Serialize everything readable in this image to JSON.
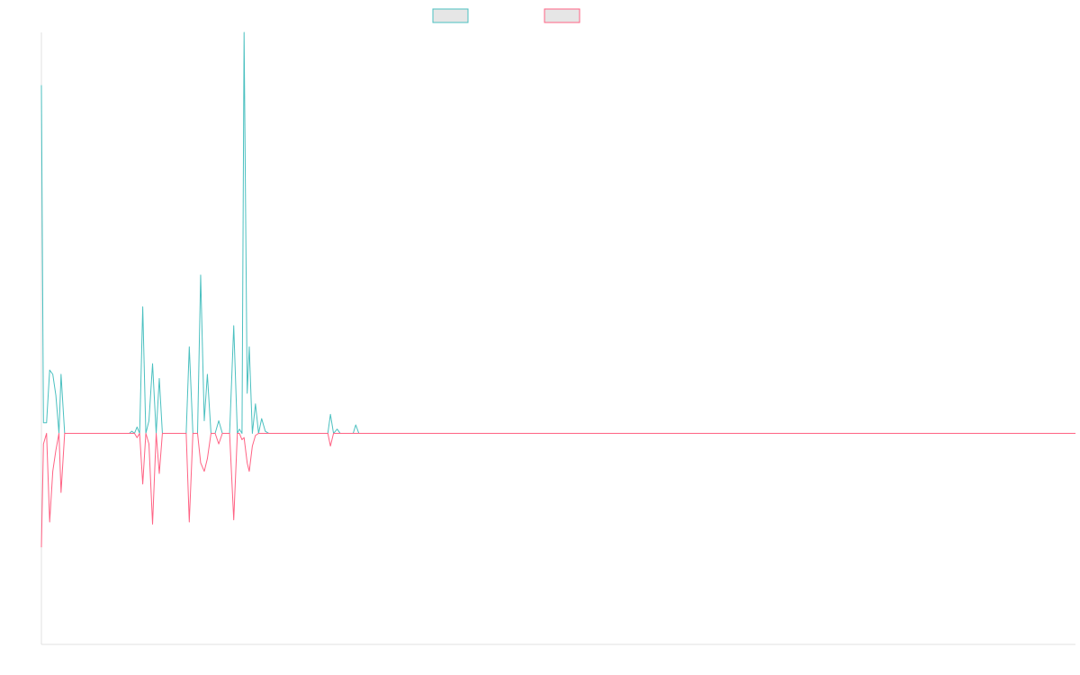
{
  "chart_data": {
    "type": "line",
    "title": "",
    "xlabel": "",
    "ylabel": "",
    "grid": false,
    "legend_position": "top-center",
    "ylim": [
      -1.0,
      1.9
    ],
    "xlim": [
      0,
      200
    ],
    "series": [
      {
        "label": "",
        "color": "#4bc0c0",
        "points": [
          [
            0,
            1.65
          ],
          [
            0.4,
            0.05
          ],
          [
            1,
            0.05
          ],
          [
            1.6,
            0.3
          ],
          [
            2.2,
            0.28
          ],
          [
            2.8,
            0.18
          ],
          [
            3.4,
            0.0
          ],
          [
            3.8,
            0.28
          ],
          [
            4.5,
            0.0
          ],
          [
            17,
            0.0
          ],
          [
            17.5,
            0.01
          ],
          [
            18,
            0.0
          ],
          [
            18.5,
            0.03
          ],
          [
            19,
            0.0
          ],
          [
            19.6,
            0.6
          ],
          [
            20.2,
            0.0
          ],
          [
            20.8,
            0.06
          ],
          [
            21.5,
            0.33
          ],
          [
            22.2,
            0.0
          ],
          [
            22.8,
            0.26
          ],
          [
            23.4,
            0.0
          ],
          [
            28,
            0.0
          ],
          [
            28.6,
            0.41
          ],
          [
            29.3,
            0.0
          ],
          [
            30.2,
            0.0
          ],
          [
            30.8,
            0.75
          ],
          [
            31.5,
            0.06
          ],
          [
            32.1,
            0.28
          ],
          [
            32.8,
            0.0
          ],
          [
            33.6,
            0.0
          ],
          [
            34.3,
            0.06
          ],
          [
            35,
            0.0
          ],
          [
            36.4,
            0.0
          ],
          [
            37.2,
            0.51
          ],
          [
            37.9,
            0.0
          ],
          [
            38.3,
            0.02
          ],
          [
            38.8,
            0.0
          ],
          [
            39.2,
            1.9
          ],
          [
            39.8,
            0.19
          ],
          [
            40.2,
            0.41
          ],
          [
            40.8,
            0.0
          ],
          [
            41.4,
            0.14
          ],
          [
            42,
            0.0
          ],
          [
            42.6,
            0.07
          ],
          [
            43.3,
            0.01
          ],
          [
            44,
            0.0
          ],
          [
            55.4,
            0.0
          ],
          [
            55.9,
            0.09
          ],
          [
            56.5,
            0.0
          ],
          [
            57.2,
            0.02
          ],
          [
            57.8,
            0.0
          ],
          [
            60.3,
            0.0
          ],
          [
            60.8,
            0.04
          ],
          [
            61.4,
            0.0
          ],
          [
            200,
            0.0
          ]
        ]
      },
      {
        "label": "",
        "color": "#ff6384",
        "points": [
          [
            0,
            -0.54
          ],
          [
            0.4,
            -0.05
          ],
          [
            1,
            0.0
          ],
          [
            1.6,
            -0.42
          ],
          [
            2.2,
            -0.18
          ],
          [
            2.8,
            -0.08
          ],
          [
            3.4,
            0.0
          ],
          [
            3.8,
            -0.28
          ],
          [
            4.5,
            0.0
          ],
          [
            17,
            0.0
          ],
          [
            17.5,
            0.0
          ],
          [
            18,
            0.0
          ],
          [
            18.5,
            -0.02
          ],
          [
            19,
            0.0
          ],
          [
            19.6,
            -0.24
          ],
          [
            20.2,
            0.0
          ],
          [
            20.8,
            -0.05
          ],
          [
            21.5,
            -0.43
          ],
          [
            22.2,
            0.0
          ],
          [
            22.8,
            -0.19
          ],
          [
            23.4,
            0.0
          ],
          [
            28,
            0.0
          ],
          [
            28.6,
            -0.42
          ],
          [
            29.3,
            0.0
          ],
          [
            30.2,
            0.0
          ],
          [
            30.8,
            -0.14
          ],
          [
            31.5,
            -0.18
          ],
          [
            32.1,
            -0.12
          ],
          [
            32.8,
            0.0
          ],
          [
            33.6,
            0.0
          ],
          [
            34.3,
            -0.05
          ],
          [
            35,
            0.0
          ],
          [
            36.4,
            0.0
          ],
          [
            37.2,
            -0.41
          ],
          [
            37.9,
            0.0
          ],
          [
            38.3,
            0.0
          ],
          [
            38.8,
            -0.03
          ],
          [
            39.2,
            -0.02
          ],
          [
            39.8,
            -0.14
          ],
          [
            40.2,
            -0.18
          ],
          [
            40.8,
            -0.06
          ],
          [
            41.4,
            -0.01
          ],
          [
            42,
            0.0
          ],
          [
            55.4,
            0.0
          ],
          [
            55.9,
            -0.06
          ],
          [
            56.5,
            0.0
          ],
          [
            200,
            0.0
          ]
        ]
      }
    ]
  }
}
